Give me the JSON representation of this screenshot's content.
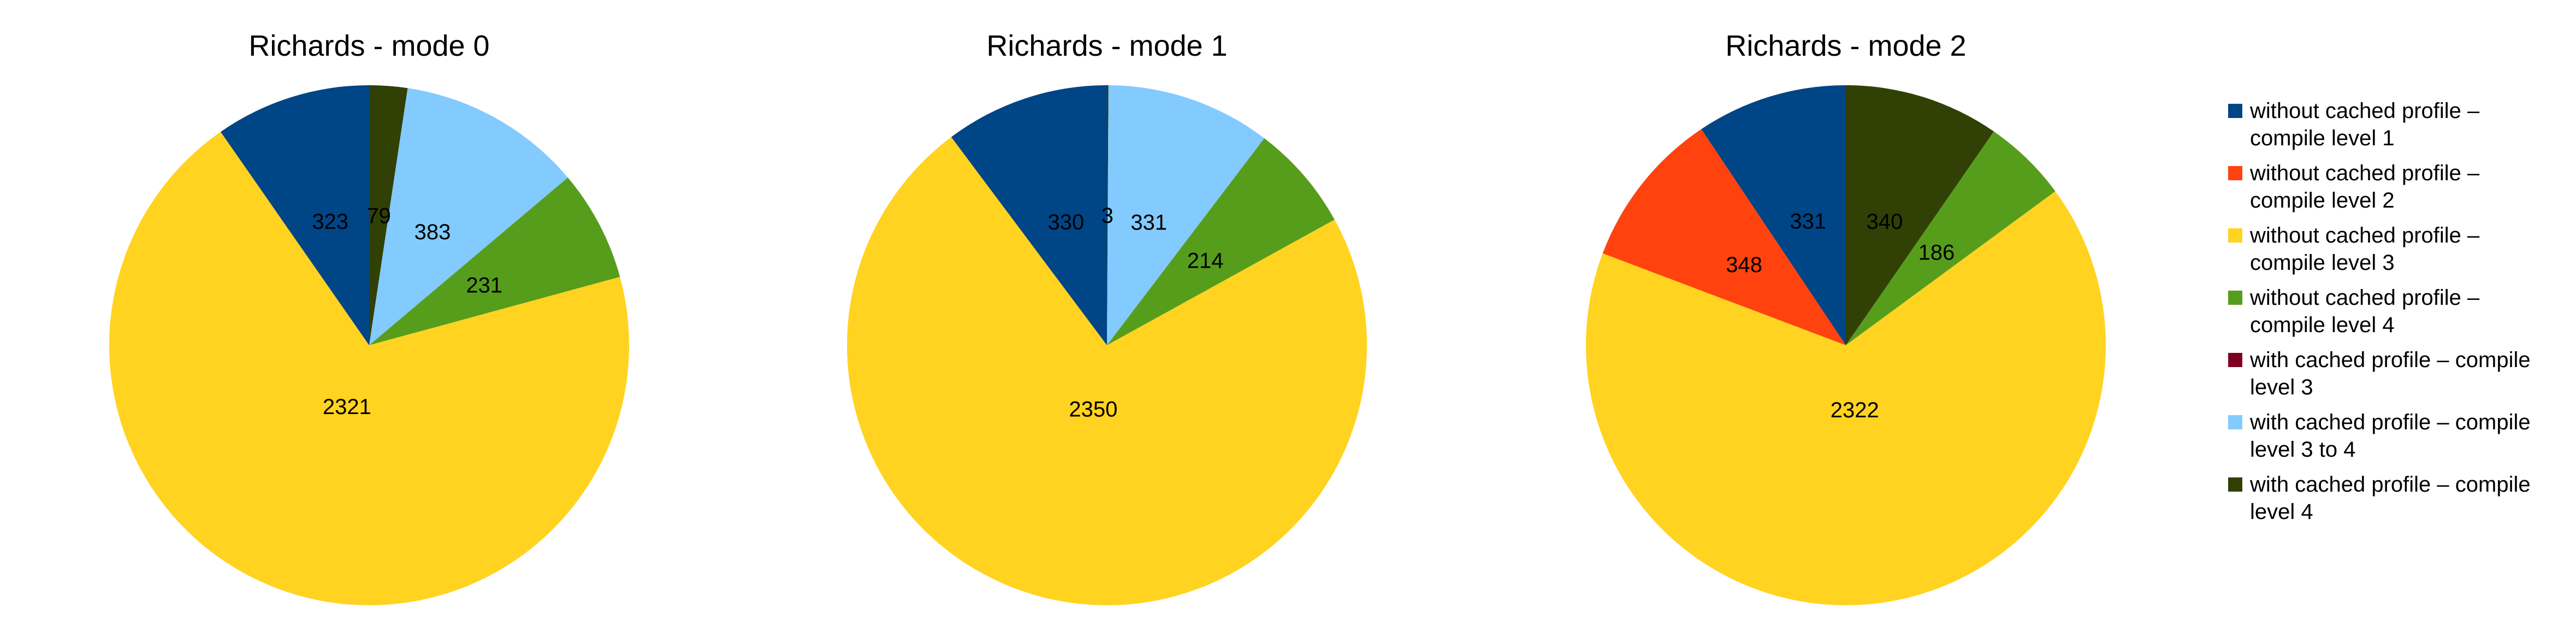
{
  "legend": [
    {
      "lines": [
        "without cached profile –",
        "compile level 1"
      ],
      "color": "#004586"
    },
    {
      "lines": [
        "without cached profile –",
        "compile level 2"
      ],
      "color": "#FF420E"
    },
    {
      "lines": [
        "without cached profile –",
        "compile level 3"
      ],
      "color": "#FFD320"
    },
    {
      "lines": [
        "without cached profile –",
        "compile level 4"
      ],
      "color": "#579D1C"
    },
    {
      "lines": [
        "with cached profile – compile",
        "level 3"
      ],
      "color": "#7E0021"
    },
    {
      "lines": [
        "with cached profile – compile",
        "level 3 to 4"
      ],
      "color": "#83CAFF"
    },
    {
      "lines": [
        "with cached profile – compile",
        "level 4"
      ],
      "color": "#314004"
    }
  ],
  "chart_data": [
    {
      "type": "pie",
      "title": "Richards - mode 0",
      "series_index": [
        6,
        5,
        3,
        2,
        1,
        0,
        4
      ],
      "values": [
        79,
        383,
        231,
        2321,
        0,
        323,
        0
      ],
      "labels": [
        "79",
        "383",
        "231",
        "2321",
        "",
        "323",
        ""
      ]
    },
    {
      "type": "pie",
      "title": "Richards - mode 1",
      "series_index": [
        6,
        5,
        3,
        2,
        1,
        0,
        4
      ],
      "values": [
        3,
        331,
        214,
        2350,
        0,
        330,
        0
      ],
      "labels": [
        "3",
        "331",
        "214",
        "2350",
        "",
        "330",
        ""
      ]
    },
    {
      "type": "pie",
      "title": "Richards - mode 2",
      "series_index": [
        6,
        5,
        3,
        2,
        1,
        0,
        4
      ],
      "values": [
        340,
        0,
        186,
        2322,
        348,
        331,
        0
      ],
      "labels": [
        "340",
        "",
        "186",
        "2322",
        "348",
        "331",
        ""
      ]
    }
  ]
}
